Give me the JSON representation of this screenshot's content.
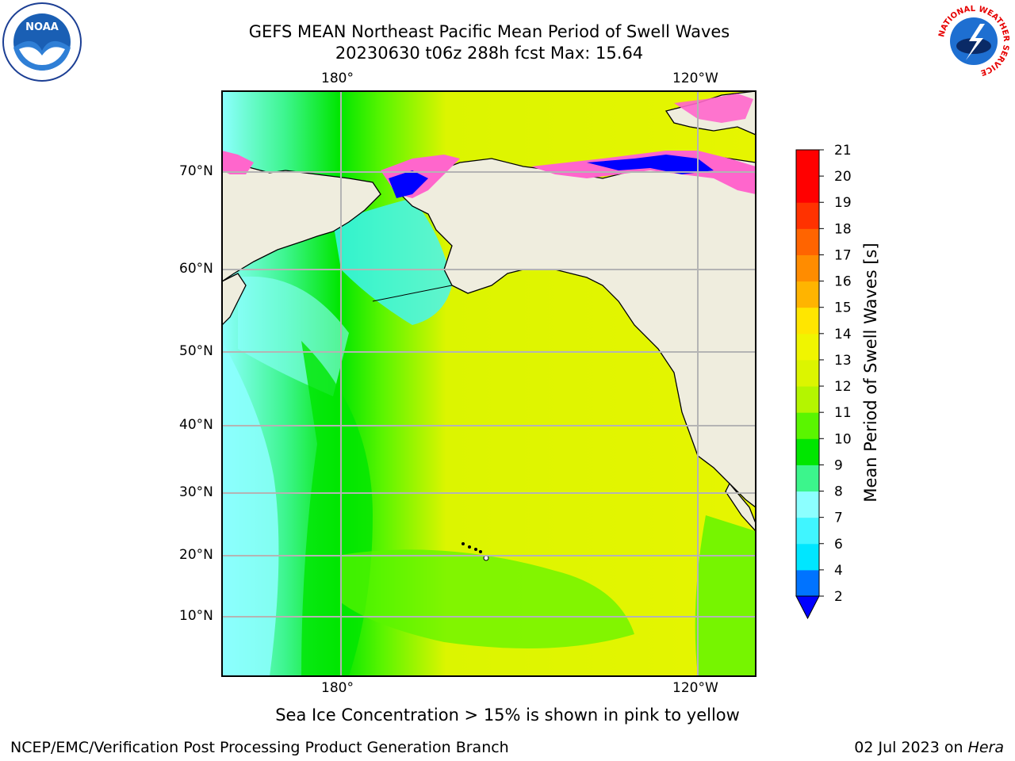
{
  "header": {
    "title_line1": "GEFS MEAN Northeast Pacific Mean Period of Swell Waves",
    "title_line2": "20230630 t06z 288h fcst   Max: 15.64"
  },
  "logos": {
    "noaa_text": "NOAA",
    "nws_ring_text": "NATIONAL WEATHER SERVICE"
  },
  "map": {
    "lon_labels_top": [
      "180°",
      "120°W"
    ],
    "lon_labels_bottom": [
      "180°",
      "120°W"
    ],
    "lat_labels": [
      "70°N",
      "60°N",
      "50°N",
      "40°N",
      "30°N",
      "20°N",
      "10°N"
    ],
    "colors": {
      "land": "#efedde",
      "grid": "#b4b4b4",
      "coast": "#000000"
    }
  },
  "colorbar": {
    "label": "Mean Period of Swell Waves [s]",
    "ticks": [
      "2",
      "4",
      "6",
      "7",
      "8",
      "9",
      "10",
      "11",
      "12",
      "13",
      "14",
      "15",
      "16",
      "17",
      "18",
      "19",
      "20",
      "21"
    ],
    "colors": [
      "#0073ff",
      "#00e6ff",
      "#40f5ff",
      "#8cffff",
      "#3cf58c",
      "#00e600",
      "#5af500",
      "#b4f500",
      "#dcf500",
      "#f0f500",
      "#ffe600",
      "#ffb400",
      "#ff8c00",
      "#ff6400",
      "#ff3200",
      "#ff0000"
    ],
    "extend_color": "#0000ff"
  },
  "notes": {
    "ice_note": "Sea Ice Concentration > 15% is shown in pink to yellow"
  },
  "footer": {
    "left": "NCEP/EMC/Verification Post Processing Product Generation Branch",
    "right_date": "02 Jul 2023 on ",
    "right_host": "Hera"
  }
}
